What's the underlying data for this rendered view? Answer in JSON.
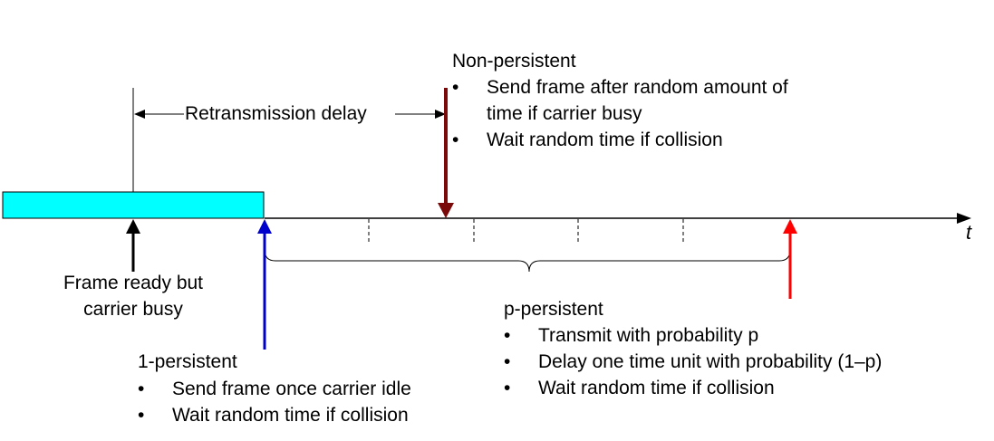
{
  "axis_label": "t",
  "retransmission_delay": "Retransmission delay",
  "frame_ready": [
    "Frame ready but",
    "carrier busy"
  ],
  "non_persistent": {
    "title": "Non-persistent",
    "bullets": [
      [
        "Send frame after random amount of",
        "time if carrier busy"
      ],
      [
        "Wait random time if collision"
      ]
    ]
  },
  "one_persistent": {
    "title": "1-persistent",
    "bullets": [
      "Send frame once carrier idle",
      "Wait random time if collision"
    ]
  },
  "p_persistent": {
    "title": "p-persistent",
    "bullets": [
      "Transmit with probability p",
      "Delay one time unit with probability (1–p)",
      "Wait random time if collision"
    ]
  },
  "colors": {
    "frame_bar": "#00ffff",
    "one_persistent_arrow": "#0000cc",
    "non_persistent_arrow": "#7a0a0a",
    "p_persistent_arrow": "#ff0000"
  }
}
